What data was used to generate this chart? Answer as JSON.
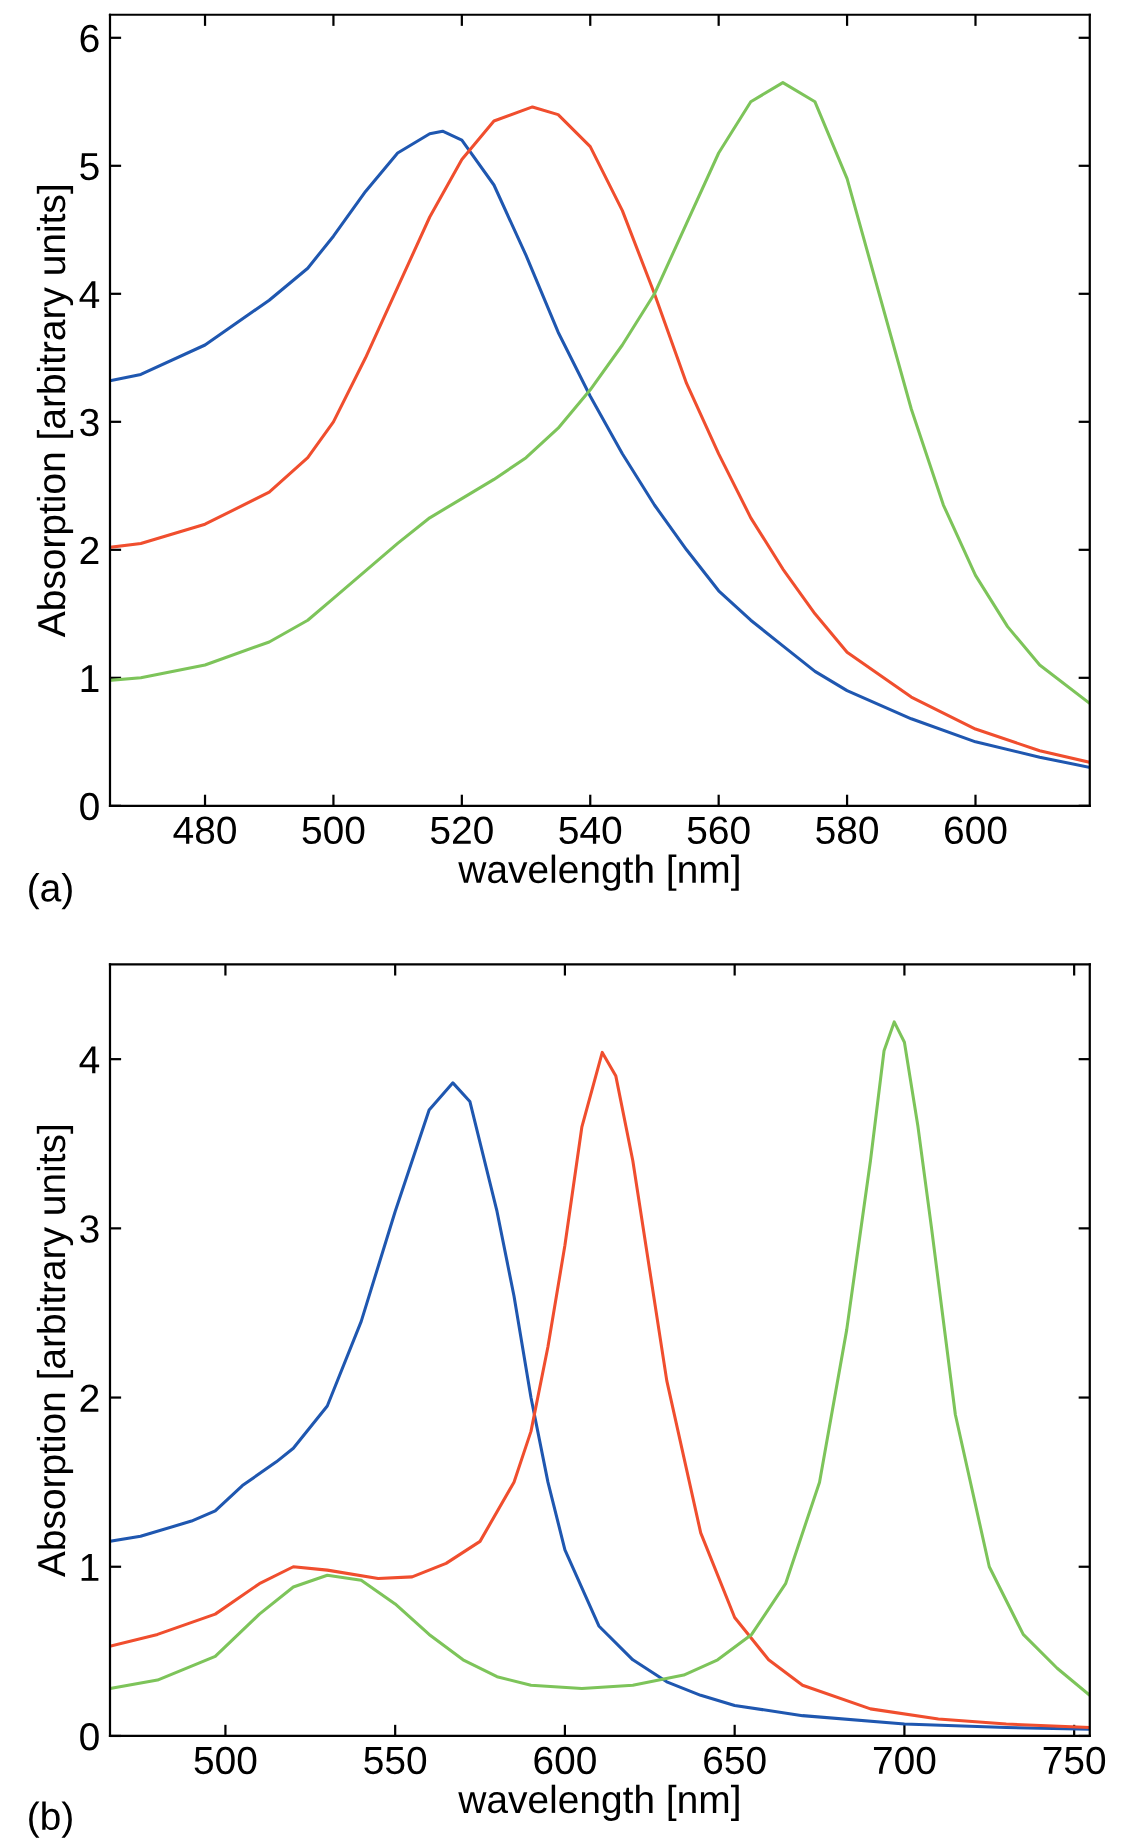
{
  "chart_data": [
    {
      "type": "line",
      "xlabel": "wavelength [nm]",
      "ylabel": "Absorption [arbitrary units]",
      "annotations": [
        "(a)"
      ],
      "xlim": [
        465.2,
        617.8
      ],
      "ylim": [
        0,
        6.18
      ],
      "xticks": [
        480,
        500,
        520,
        540,
        560,
        580,
        600
      ],
      "yticks": [
        0,
        1,
        2,
        3,
        4,
        5,
        6
      ],
      "series": [
        {
          "color": "#1f57b0",
          "x": [
            465.2,
            470,
            480,
            490,
            496,
            500,
            505,
            510,
            515,
            517,
            520,
            525,
            530,
            535,
            540,
            545,
            550,
            555,
            560,
            565,
            570,
            575,
            580,
            590,
            600,
            610,
            617.8
          ],
          "values": [
            3.32,
            3.37,
            3.6,
            3.95,
            4.2,
            4.45,
            4.8,
            5.1,
            5.25,
            5.27,
            5.2,
            4.85,
            4.3,
            3.7,
            3.2,
            2.75,
            2.35,
            2.0,
            1.68,
            1.45,
            1.25,
            1.05,
            0.9,
            0.68,
            0.5,
            0.38,
            0.3
          ]
        },
        {
          "color": "#f04e2e",
          "x": [
            465.2,
            470,
            480,
            490,
            496,
            500,
            505,
            510,
            515,
            520,
            525,
            531,
            535,
            540,
            545,
            550,
            555,
            560,
            565,
            570,
            575,
            580,
            590,
            600,
            610,
            617.8
          ],
          "values": [
            2.02,
            2.05,
            2.2,
            2.45,
            2.72,
            3.0,
            3.5,
            4.05,
            4.6,
            5.05,
            5.35,
            5.46,
            5.4,
            5.15,
            4.65,
            4.0,
            3.3,
            2.75,
            2.25,
            1.85,
            1.5,
            1.2,
            0.85,
            0.6,
            0.43,
            0.34
          ]
        },
        {
          "color": "#7dc45a",
          "x": [
            465.2,
            470,
            480,
            490,
            496,
            500,
            510,
            515,
            520,
            525,
            530,
            535,
            540,
            545,
            550,
            555,
            560,
            565,
            570,
            575,
            580,
            585,
            590,
            595,
            600,
            605,
            610,
            617.8
          ],
          "values": [
            0.98,
            1.0,
            1.1,
            1.28,
            1.45,
            1.62,
            2.05,
            2.25,
            2.4,
            2.55,
            2.72,
            2.95,
            3.25,
            3.6,
            4.0,
            4.55,
            5.1,
            5.5,
            5.65,
            5.5,
            4.9,
            4.0,
            3.1,
            2.35,
            1.8,
            1.4,
            1.1,
            0.8
          ]
        }
      ]
    },
    {
      "type": "line",
      "xlabel": "wavelength [nm]",
      "ylabel": "Absorption [arbitrary units]",
      "annotations": [
        "(b)"
      ],
      "xlim": [
        466,
        754.6
      ],
      "ylim": [
        0,
        4.56
      ],
      "xticks": [
        500,
        550,
        600,
        650,
        700,
        750
      ],
      "yticks": [
        0,
        1,
        2,
        3,
        4
      ],
      "series": [
        {
          "color": "#1f57b0",
          "x": [
            466,
            475,
            490,
            497,
            505,
            515,
            520,
            530,
            540,
            550,
            560,
            567,
            572,
            580,
            585,
            590,
            595,
            600,
            610,
            620,
            630,
            640,
            650,
            670,
            700,
            730,
            754.6
          ],
          "values": [
            1.15,
            1.18,
            1.27,
            1.33,
            1.48,
            1.62,
            1.7,
            1.95,
            2.45,
            3.1,
            3.7,
            3.86,
            3.75,
            3.1,
            2.6,
            2.0,
            1.5,
            1.1,
            0.65,
            0.45,
            0.32,
            0.24,
            0.18,
            0.12,
            0.07,
            0.05,
            0.04
          ]
        },
        {
          "color": "#f04e2e",
          "x": [
            466,
            480,
            497,
            510,
            520,
            530,
            545,
            555,
            565,
            575,
            585,
            590,
            595,
            600,
            605,
            611,
            615,
            620,
            625,
            630,
            640,
            650,
            660,
            670,
            690,
            710,
            730,
            754.6
          ],
          "values": [
            0.53,
            0.6,
            0.72,
            0.9,
            1.0,
            0.98,
            0.93,
            0.94,
            1.02,
            1.15,
            1.5,
            1.8,
            2.3,
            2.9,
            3.6,
            4.04,
            3.9,
            3.4,
            2.75,
            2.1,
            1.2,
            0.7,
            0.45,
            0.3,
            0.16,
            0.1,
            0.07,
            0.05
          ]
        },
        {
          "color": "#7dc45a",
          "x": [
            466,
            480,
            497,
            510,
            520,
            530,
            540,
            550,
            560,
            570,
            580,
            590,
            605,
            620,
            635,
            645,
            655,
            665,
            675,
            683,
            690,
            694,
            697,
            700,
            704,
            708,
            715,
            725,
            735,
            745,
            754.6
          ],
          "values": [
            0.28,
            0.33,
            0.47,
            0.72,
            0.88,
            0.95,
            0.92,
            0.78,
            0.6,
            0.45,
            0.35,
            0.3,
            0.28,
            0.3,
            0.36,
            0.45,
            0.6,
            0.9,
            1.5,
            2.4,
            3.4,
            4.05,
            4.22,
            4.1,
            3.6,
            3.0,
            1.9,
            1.0,
            0.6,
            0.4,
            0.24
          ]
        }
      ]
    }
  ]
}
